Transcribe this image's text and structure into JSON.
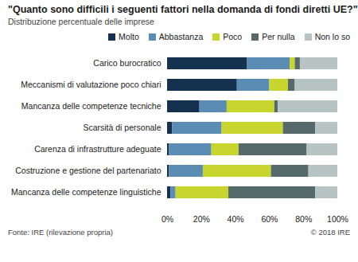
{
  "chart_data": {
    "type": "bar",
    "title": "\"Quanto sono difficili i seguenti fattori nella domanda di fondi diretti UE?\"",
    "subtitle": "Distribuzione percentuale delle imprese",
    "source": "Fonte: IRE (rilevazione propria)",
    "copyright": "© 2018 IRE",
    "orientation": "horizontal",
    "stacked": true,
    "grid": false,
    "legend": "top",
    "categories": [
      "Carico burocratico",
      "Meccanismi di valutazione poco chiari",
      "Mancanza delle competenze tecniche",
      "Scarsità di personale",
      "Carenza di infrastrutture adeguate",
      "Costruzione e gestione del partenariato",
      "Mancanza delle competenze linguistiche"
    ],
    "series": [
      {
        "name": "Molto",
        "color": "#14314f",
        "values": [
          47,
          41,
          19,
          3,
          1,
          1,
          2
        ]
      },
      {
        "name": "Abbastanza",
        "color": "#5b8db4",
        "values": [
          25,
          19,
          16,
          29,
          25,
          20,
          3
        ]
      },
      {
        "name": "Poco",
        "color": "#c8d52f",
        "values": [
          3,
          11,
          28,
          36,
          16,
          40,
          31
        ]
      },
      {
        "name": "Per nulla",
        "color": "#566a6b",
        "values": [
          3,
          4,
          2,
          19,
          40,
          22,
          51
        ]
      },
      {
        "name": "Non lo so",
        "color": "#b8c4c4",
        "values": [
          22,
          25,
          35,
          13,
          18,
          17,
          13
        ]
      }
    ],
    "xlim": [
      0,
      100
    ],
    "xticks": [
      {
        "value": 0,
        "label": "0%"
      },
      {
        "value": 20,
        "label": "20%"
      },
      {
        "value": 40,
        "label": "40%"
      },
      {
        "value": 60,
        "label": "60%"
      },
      {
        "value": 80,
        "label": "80%"
      },
      {
        "value": 100,
        "label": "100%"
      }
    ]
  }
}
